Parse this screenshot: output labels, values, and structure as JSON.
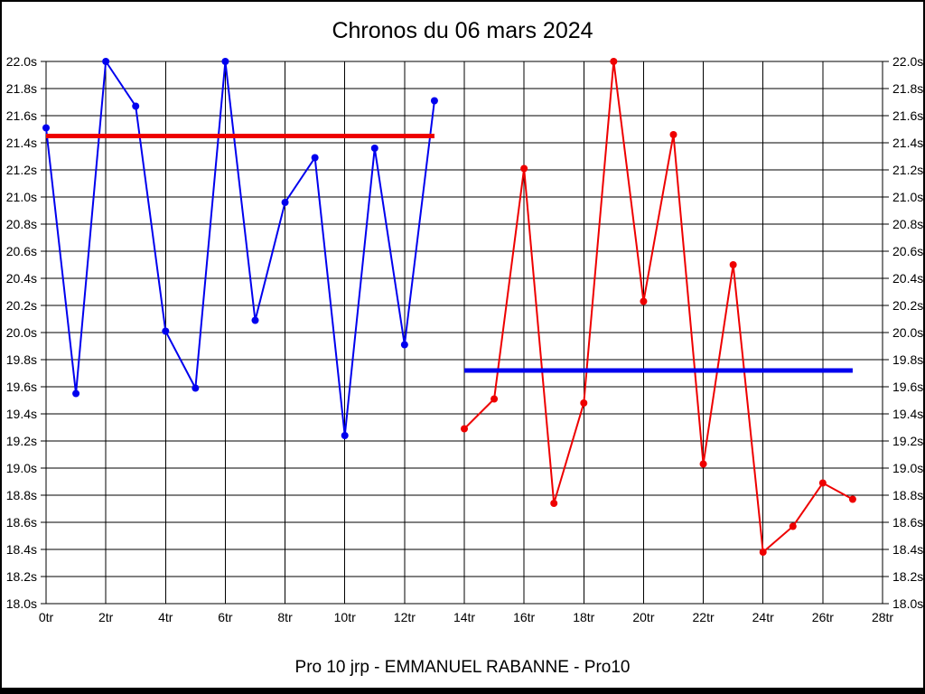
{
  "chart_data": {
    "type": "line",
    "title": "Chronos du 06 mars 2024",
    "footer": "Pro 10 jrp - EMMANUEL RABANNE - Pro10",
    "xlabel": "",
    "ylabel": "",
    "xlim": [
      0,
      28
    ],
    "ylim": [
      18.0,
      22.0
    ],
    "grid": true,
    "legend": "none",
    "x_ticks": [
      {
        "value": 0,
        "label": "0tr"
      },
      {
        "value": 2,
        "label": "2tr"
      },
      {
        "value": 4,
        "label": "4tr"
      },
      {
        "value": 6,
        "label": "6tr"
      },
      {
        "value": 8,
        "label": "8tr"
      },
      {
        "value": 10,
        "label": "10tr"
      },
      {
        "value": 12,
        "label": "12tr"
      },
      {
        "value": 14,
        "label": "14tr"
      },
      {
        "value": 16,
        "label": "16tr"
      },
      {
        "value": 18,
        "label": "18tr"
      },
      {
        "value": 20,
        "label": "20tr"
      },
      {
        "value": 22,
        "label": "22tr"
      },
      {
        "value": 24,
        "label": "24tr"
      },
      {
        "value": 26,
        "label": "26tr"
      },
      {
        "value": 28,
        "label": "28tr"
      }
    ],
    "y_ticks": [
      {
        "value": 22.0,
        "label": "22.0s"
      },
      {
        "value": 21.8,
        "label": "21.8s"
      },
      {
        "value": 21.6,
        "label": "21.6s"
      },
      {
        "value": 21.4,
        "label": "21.4s"
      },
      {
        "value": 21.2,
        "label": "21.2s"
      },
      {
        "value": 21.0,
        "label": "21.0s"
      },
      {
        "value": 20.8,
        "label": "20.8s"
      },
      {
        "value": 20.6,
        "label": "20.6s"
      },
      {
        "value": 20.4,
        "label": "20.4s"
      },
      {
        "value": 20.2,
        "label": "20.2s"
      },
      {
        "value": 20.0,
        "label": "20.0s"
      },
      {
        "value": 19.8,
        "label": "19.8s"
      },
      {
        "value": 19.6,
        "label": "19.6s"
      },
      {
        "value": 19.4,
        "label": "19.4s"
      },
      {
        "value": 19.2,
        "label": "19.2s"
      },
      {
        "value": 19.0,
        "label": "19.0s"
      },
      {
        "value": 18.8,
        "label": "18.8s"
      },
      {
        "value": 18.6,
        "label": "18.6s"
      },
      {
        "value": 18.4,
        "label": "18.4s"
      },
      {
        "value": 18.2,
        "label": "18.2s"
      },
      {
        "value": 18.0,
        "label": "18.0s"
      }
    ],
    "series": [
      {
        "name": "serie-bleue",
        "color": "#0000EE",
        "x": [
          0,
          1,
          2,
          3,
          4,
          5,
          6,
          7,
          8,
          9,
          10,
          11,
          12,
          13
        ],
        "values": [
          21.51,
          19.55,
          22.0,
          21.67,
          20.01,
          19.59,
          22.0,
          20.09,
          20.96,
          21.29,
          19.24,
          21.36,
          19.91,
          21.71
        ]
      },
      {
        "name": "serie-rouge",
        "color": "#EE0000",
        "x": [
          14,
          15,
          16,
          17,
          18,
          19,
          20,
          21,
          22,
          23,
          24,
          25,
          26,
          27
        ],
        "values": [
          19.29,
          19.51,
          21.21,
          18.74,
          19.48,
          22.0,
          20.23,
          21.46,
          19.03,
          20.5,
          18.38,
          18.57,
          18.89,
          18.77
        ]
      }
    ],
    "reference_lines": [
      {
        "name": "ligne-rouge",
        "color": "#EE0000",
        "value": 21.45,
        "x_start": 0,
        "x_end": 13
      },
      {
        "name": "ligne-bleue",
        "color": "#0000EE",
        "value": 19.72,
        "x_start": 14,
        "x_end": 27
      }
    ]
  }
}
